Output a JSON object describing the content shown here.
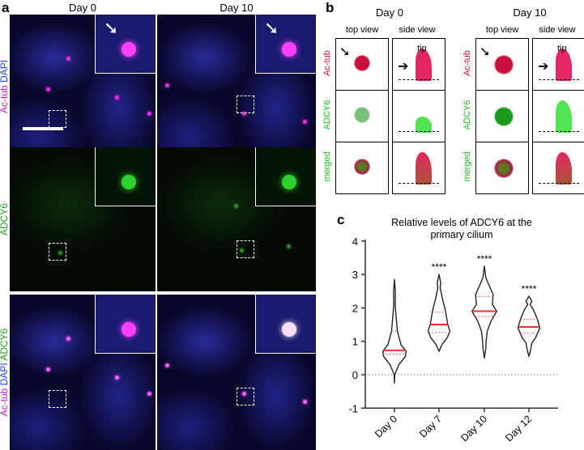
{
  "panel_a": {
    "label": "a",
    "columns": [
      "Day 0",
      "Day 10"
    ],
    "row_labels": [
      {
        "parts": [
          {
            "text": "Ac-tub ",
            "color": "#c020c0"
          },
          {
            "text": "DAPI",
            "color": "#2040ff"
          }
        ]
      },
      {
        "parts": [
          {
            "text": "ADCY6",
            "color": "#20a020"
          }
        ]
      },
      {
        "parts": [
          {
            "text": "Ac-tub ",
            "color": "#c020c0"
          },
          {
            "text": "DAPI ",
            "color": "#2040ff"
          },
          {
            "text": "ADCY6",
            "color": "#20a020"
          }
        ]
      }
    ]
  },
  "panel_b": {
    "label": "b",
    "groups": [
      {
        "title": "Day 0",
        "views": [
          "top view",
          "side view"
        ],
        "tip": "tip"
      },
      {
        "title": "Day 10",
        "views": [
          "top view",
          "side view"
        ],
        "tip": "tip"
      }
    ],
    "row_labels": [
      {
        "text": "Ac-tub",
        "color": "#e0102a"
      },
      {
        "text": "ADCY6",
        "color": "#20c020"
      },
      {
        "text": "merged",
        "color": "#20c020"
      }
    ]
  },
  "chart_data": {
    "panel_label": "c",
    "type": "violin",
    "title": "Relative levels of ADCY6 at the primary cilium",
    "title_lines": [
      "Relative levels of ADCY6 at the",
      "primary cilium"
    ],
    "categories": [
      "Day 0",
      "Day 7",
      "Day 10",
      "Day 12"
    ],
    "ylim": [
      -1,
      4
    ],
    "yticks": [
      "-1",
      "0",
      "1",
      "2",
      "3",
      "4"
    ],
    "reference_line": 0,
    "groups": [
      {
        "name": "Day 0",
        "min": -0.25,
        "max": 2.85,
        "median": 0.73,
        "q1": 0.61,
        "q3": 1.31,
        "significance": "",
        "profile": [
          [
            -0.25,
            0
          ],
          [
            0,
            0.02
          ],
          [
            0.3,
            0.3
          ],
          [
            0.55,
            0.75
          ],
          [
            0.7,
            0.8
          ],
          [
            0.9,
            0.45
          ],
          [
            1.3,
            0.2
          ],
          [
            1.8,
            0.1
          ],
          [
            2.1,
            0.05
          ],
          [
            2.5,
            0.06
          ],
          [
            2.85,
            0
          ]
        ]
      },
      {
        "name": "Day 7",
        "min": 0.7,
        "max": 3.0,
        "median": 1.5,
        "q1": 1.26,
        "q3": 1.87,
        "significance": "****",
        "profile": [
          [
            0.7,
            0
          ],
          [
            0.9,
            0.2
          ],
          [
            1.1,
            0.55
          ],
          [
            1.3,
            0.75
          ],
          [
            1.5,
            0.6
          ],
          [
            1.9,
            0.45
          ],
          [
            2.3,
            0.22
          ],
          [
            2.6,
            0.08
          ],
          [
            2.75,
            0.12
          ],
          [
            3.0,
            0
          ]
        ]
      },
      {
        "name": "Day 10",
        "min": 0.5,
        "max": 3.25,
        "median": 1.9,
        "q1": 1.74,
        "q3": 2.34,
        "significance": "****",
        "profile": [
          [
            0.5,
            0
          ],
          [
            0.8,
            0.1
          ],
          [
            1.0,
            0.12
          ],
          [
            1.3,
            0.2
          ],
          [
            1.6,
            0.45
          ],
          [
            1.9,
            0.85
          ],
          [
            2.1,
            0.55
          ],
          [
            2.4,
            0.6
          ],
          [
            2.7,
            0.3
          ],
          [
            2.9,
            0.1
          ],
          [
            3.25,
            0
          ]
        ]
      },
      {
        "name": "Day 12",
        "min": 0.55,
        "max": 2.35,
        "median": 1.43,
        "q1": 1.24,
        "q3": 1.66,
        "significance": "****",
        "profile": [
          [
            0.55,
            0
          ],
          [
            0.75,
            0.12
          ],
          [
            0.95,
            0.2
          ],
          [
            1.1,
            0.45
          ],
          [
            1.4,
            0.75
          ],
          [
            1.7,
            0.55
          ],
          [
            1.95,
            0.3
          ],
          [
            2.1,
            0.08
          ],
          [
            2.2,
            0.2
          ],
          [
            2.35,
            0
          ]
        ]
      }
    ]
  }
}
